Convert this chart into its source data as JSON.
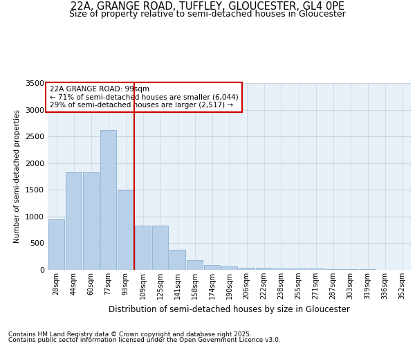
{
  "title": "22A, GRANGE ROAD, TUFFLEY, GLOUCESTER, GL4 0PE",
  "subtitle": "Size of property relative to semi-detached houses in Gloucester",
  "xlabel": "Distribution of semi-detached houses by size in Gloucester",
  "ylabel": "Number of semi-detached properties",
  "categories": [
    "28sqm",
    "44sqm",
    "60sqm",
    "77sqm",
    "93sqm",
    "109sqm",
    "125sqm",
    "141sqm",
    "158sqm",
    "174sqm",
    "190sqm",
    "206sqm",
    "222sqm",
    "238sqm",
    "255sqm",
    "271sqm",
    "287sqm",
    "303sqm",
    "319sqm",
    "336sqm",
    "352sqm"
  ],
  "values": [
    950,
    1830,
    1830,
    2620,
    1490,
    830,
    830,
    380,
    185,
    95,
    65,
    40,
    40,
    25,
    20,
    25,
    15,
    10,
    8,
    5,
    5
  ],
  "bar_color": "#b8d0e8",
  "bar_edge_color": "#8ab0d0",
  "vline_x": 4.5,
  "vline_color": "#cc0000",
  "annotation_title": "22A GRANGE ROAD: 99sqm",
  "annotation_line1": "← 71% of semi-detached houses are smaller (6,044)",
  "annotation_line2": "29% of semi-detached houses are larger (2,517) →",
  "annotation_box_color": "#ffffff",
  "annotation_box_edge": "#cc0000",
  "grid_color": "#c8d4e0",
  "background_color": "#e8f0f8",
  "ylim": [
    0,
    3500
  ],
  "yticks": [
    0,
    500,
    1000,
    1500,
    2000,
    2500,
    3000,
    3500
  ],
  "footer_line1": "Contains HM Land Registry data © Crown copyright and database right 2025.",
  "footer_line2": "Contains public sector information licensed under the Open Government Licence v3.0."
}
